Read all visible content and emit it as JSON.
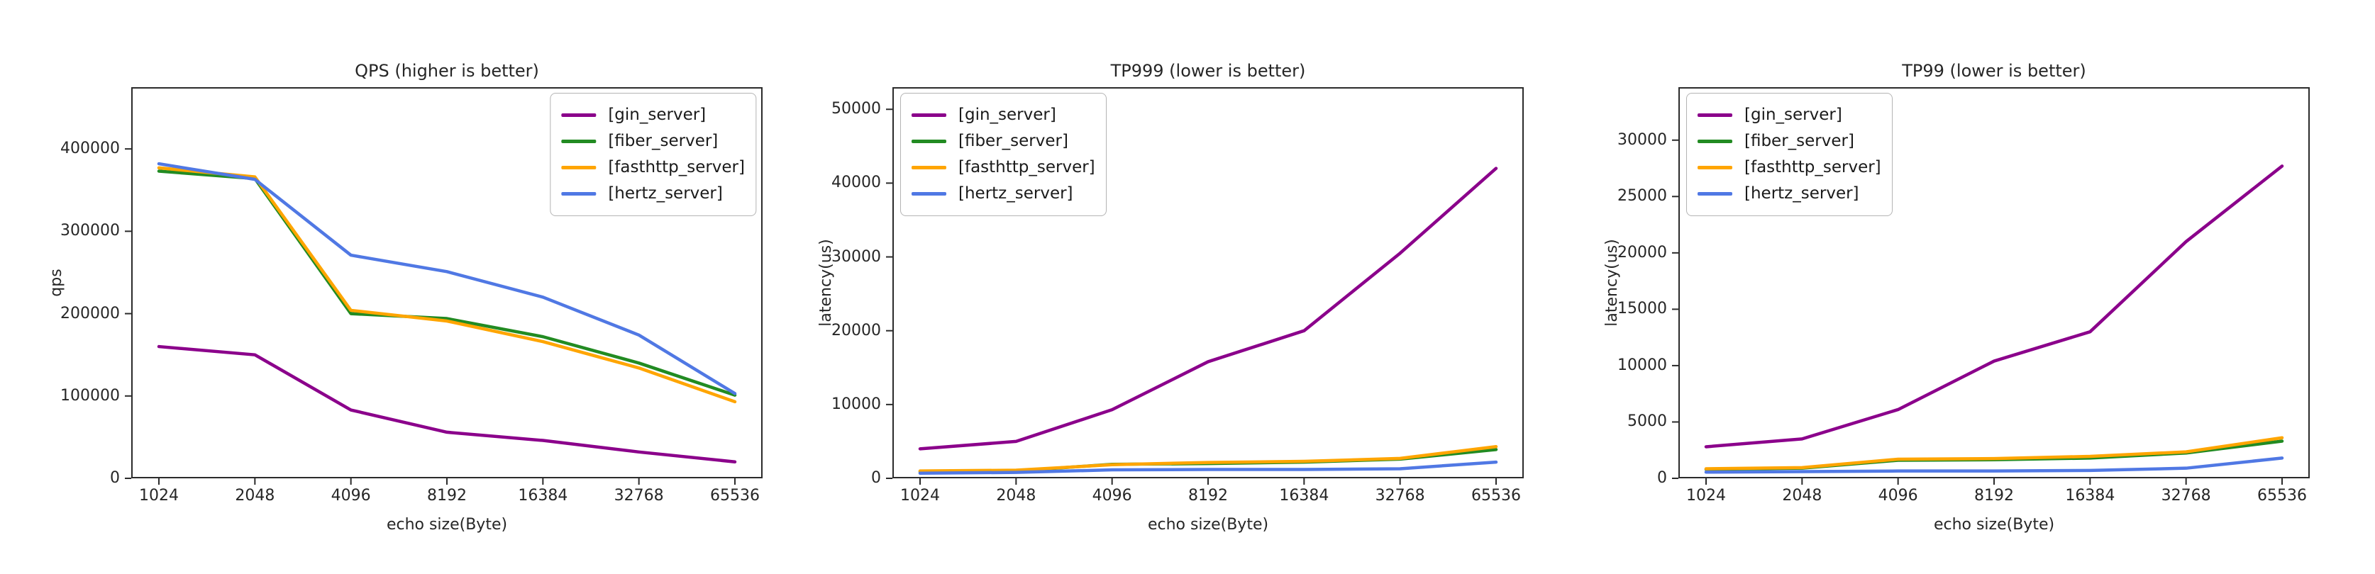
{
  "figure": {
    "background": "#ffffff",
    "spine_color": "#2b2b2b",
    "text_color": "#262626"
  },
  "chart_data": [
    {
      "type": "line",
      "title": "QPS (higher is better)",
      "xlabel": "echo size(Byte)",
      "ylabel": "qps",
      "categories": [
        "1024",
        "2048",
        "4096",
        "8192",
        "16384",
        "32768",
        "65536"
      ],
      "ylim": [
        0,
        475000
      ],
      "yticks": [
        0,
        100000,
        200000,
        300000,
        400000
      ],
      "grid": false,
      "legend_position": "upper-right",
      "series": [
        {
          "name": "[gin_server]",
          "color": "#8B008B",
          "values": [
            160000,
            150000,
            83000,
            56000,
            46000,
            32000,
            20000
          ]
        },
        {
          "name": "[fiber_server]",
          "color": "#228B22",
          "values": [
            373000,
            364000,
            200000,
            194000,
            172000,
            140000,
            101000
          ]
        },
        {
          "name": "[fasthttp_server]",
          "color": "#FFA500",
          "values": [
            377000,
            366000,
            204000,
            191000,
            166000,
            134000,
            93000
          ]
        },
        {
          "name": "[hertz_server]",
          "color": "#5078E4",
          "values": [
            382000,
            363000,
            271000,
            251000,
            220000,
            174000,
            103000
          ]
        }
      ]
    },
    {
      "type": "line",
      "title": "TP999 (lower is better)",
      "xlabel": "echo size(Byte)",
      "ylabel": "latency(us)",
      "categories": [
        "1024",
        "2048",
        "4096",
        "8192",
        "16384",
        "32768",
        "65536"
      ],
      "ylim": [
        0,
        53000
      ],
      "yticks": [
        0,
        10000,
        20000,
        30000,
        40000,
        50000
      ],
      "grid": false,
      "legend_position": "upper-left",
      "series": [
        {
          "name": "[gin_server]",
          "color": "#8B008B",
          "values": [
            4000,
            5000,
            9300,
            15800,
            20000,
            30500,
            42000
          ]
        },
        {
          "name": "[fiber_server]",
          "color": "#228B22",
          "values": [
            900,
            1000,
            1900,
            2000,
            2200,
            2600,
            3900
          ]
        },
        {
          "name": "[fasthttp_server]",
          "color": "#FFA500",
          "values": [
            1000,
            1100,
            1850,
            2150,
            2300,
            2700,
            4300
          ]
        },
        {
          "name": "[hertz_server]",
          "color": "#5078E4",
          "values": [
            700,
            800,
            1150,
            1200,
            1200,
            1300,
            2200
          ]
        }
      ]
    },
    {
      "type": "line",
      "title": "TP99 (lower is better)",
      "xlabel": "echo size(Byte)",
      "ylabel": "latency(us)",
      "categories": [
        "1024",
        "2048",
        "4096",
        "8192",
        "16384",
        "32768",
        "65536"
      ],
      "ylim": [
        0,
        34700
      ],
      "yticks": [
        0,
        5000,
        10000,
        15000,
        20000,
        25000,
        30000
      ],
      "grid": false,
      "legend_position": "upper-left",
      "series": [
        {
          "name": "[gin_server]",
          "color": "#8B008B",
          "values": [
            2800,
            3500,
            6100,
            10400,
            13000,
            21000,
            27700
          ]
        },
        {
          "name": "[fiber_server]",
          "color": "#228B22",
          "values": [
            800,
            900,
            1600,
            1650,
            1800,
            2250,
            3300
          ]
        },
        {
          "name": "[fasthttp_server]",
          "color": "#FFA500",
          "values": [
            850,
            950,
            1700,
            1750,
            1950,
            2350,
            3600
          ]
        },
        {
          "name": "[hertz_server]",
          "color": "#5078E4",
          "values": [
            550,
            600,
            650,
            650,
            700,
            900,
            1800
          ]
        }
      ]
    }
  ]
}
